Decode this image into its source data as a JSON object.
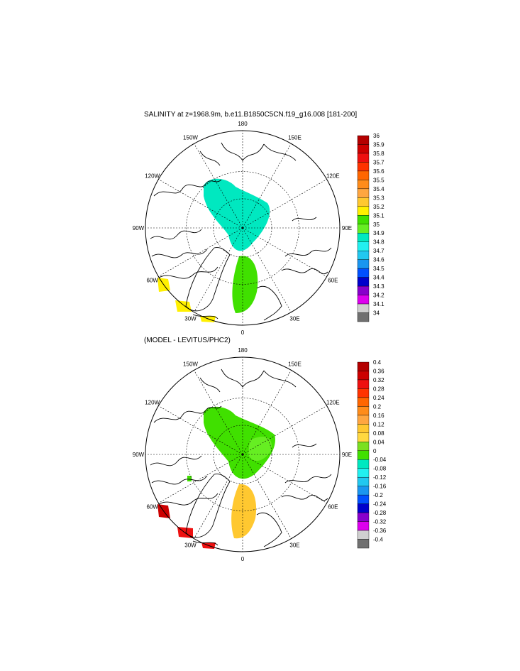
{
  "panel1": {
    "title": "SALINITY at z=1968.9m, b.e11.B1850C5CN.f19_g16.008 [181-200]",
    "meridian_labels": [
      "180",
      "150E",
      "120E",
      "90E",
      "60E",
      "30E",
      "0",
      "30W",
      "60W",
      "90W",
      "120W",
      "150W"
    ],
    "colorbar": {
      "labels": [
        "36",
        "35.9",
        "35.8",
        "35.7",
        "35.6",
        "35.5",
        "35.4",
        "35.3",
        "35.2",
        "35.1",
        "35",
        "34.9",
        "34.8",
        "34.7",
        "34.6",
        "34.5",
        "34.4",
        "34.3",
        "34.2",
        "34.1",
        "34"
      ],
      "colors": [
        "#b40000",
        "#cc0000",
        "#ee1010",
        "#ff3300",
        "#ff6600",
        "#ff8c1a",
        "#ffa640",
        "#ffc830",
        "#fff000",
        "#40e000",
        "#66ee22",
        "#00e8c0",
        "#22f0f0",
        "#22c8f0",
        "#1a96f0",
        "#0050ff",
        "#0000cc",
        "#8800cc",
        "#dd00ee",
        "#d0d0d0",
        "#707070"
      ]
    }
  },
  "panel2": {
    "title": "(MODEL - LEVITUS/PHC2)",
    "meridian_labels": [
      "180",
      "150E",
      "120E",
      "90E",
      "60E",
      "30E",
      "0",
      "30W",
      "60W",
      "90W",
      "120W",
      "150W"
    ],
    "colorbar": {
      "labels": [
        "0.4",
        "0.36",
        "0.32",
        "0.28",
        "0.24",
        "0.2",
        "0.16",
        "0.12",
        "0.08",
        "0.04",
        "0",
        "-0.04",
        "-0.08",
        "-0.12",
        "-0.16",
        "-0.2",
        "-0.24",
        "-0.28",
        "-0.32",
        "-0.36",
        "-0.4"
      ],
      "colors": [
        "#b40000",
        "#cc0000",
        "#ee1010",
        "#ff3300",
        "#ff6600",
        "#ff8c1a",
        "#ffa640",
        "#ffc830",
        "#ffd840",
        "#7ae020",
        "#40e000",
        "#00e8c0",
        "#22f0f0",
        "#22c8f0",
        "#1a96f0",
        "#0050ff",
        "#0000cc",
        "#8800cc",
        "#dd00ee",
        "#d0d0d0",
        "#707070"
      ]
    }
  }
}
